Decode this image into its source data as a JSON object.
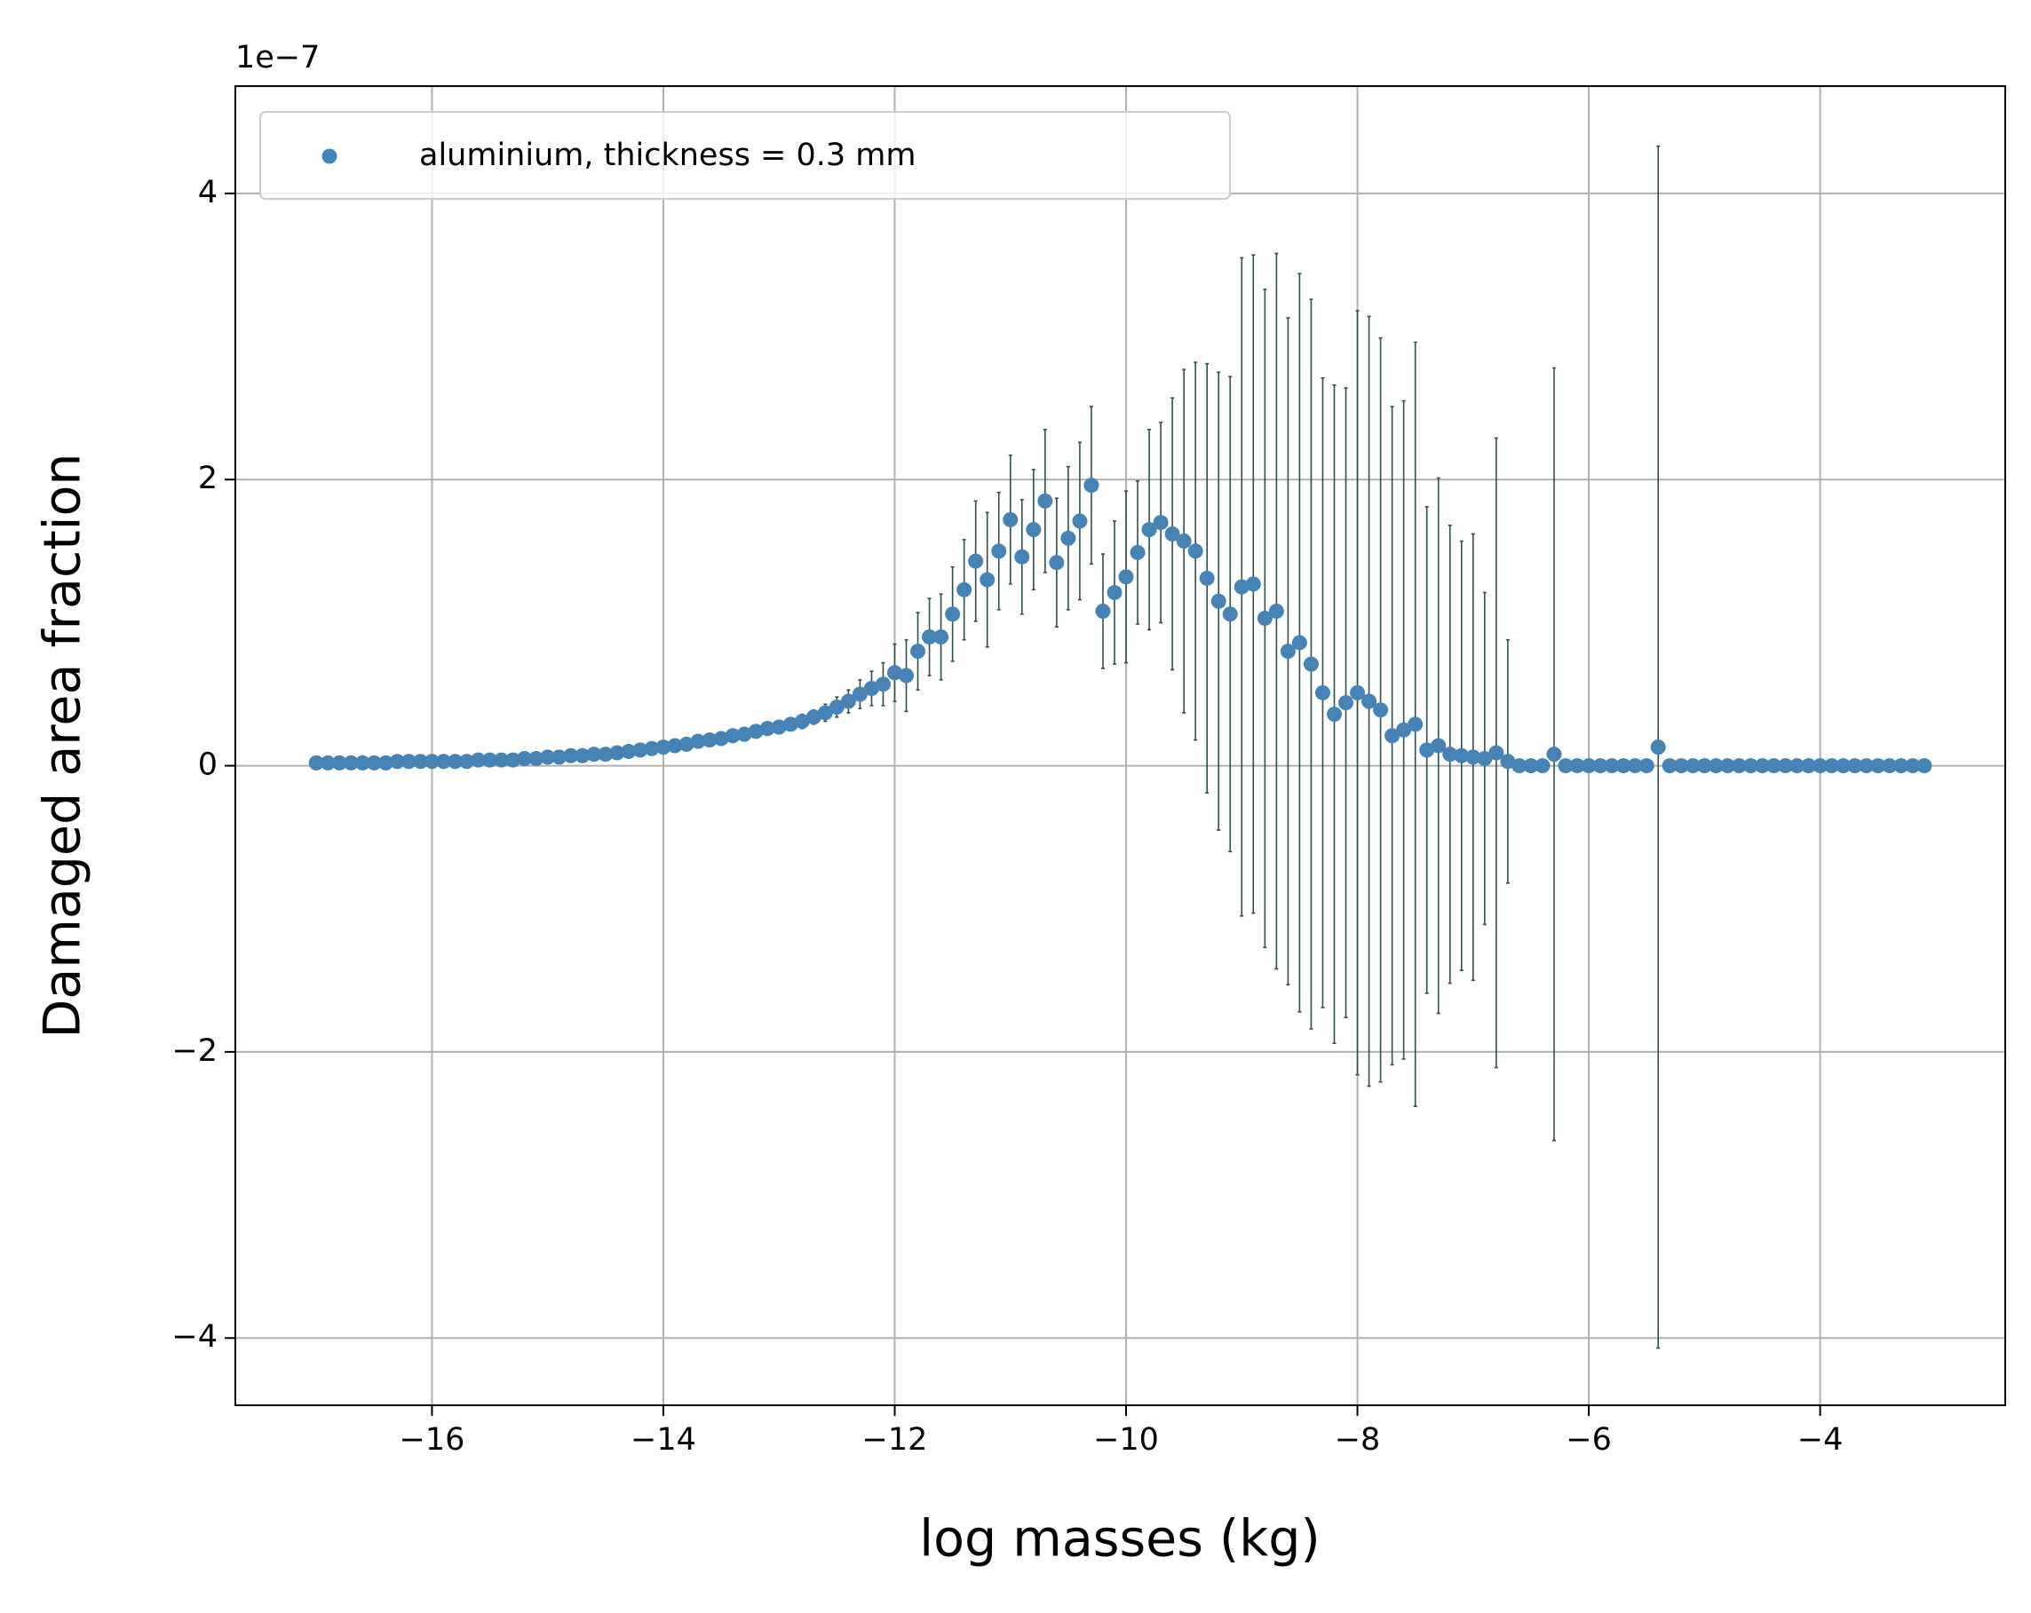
{
  "chart_data": {
    "type": "scatter",
    "y_offset_label": "1e−7",
    "xlabel": "log masses (kg)",
    "ylabel": "Damaged area fraction",
    "x": [
      -17.0,
      -16.9,
      -16.8,
      -16.7,
      -16.6,
      -16.5,
      -16.4,
      -16.3,
      -16.2,
      -16.1,
      -16.0,
      -15.9,
      -15.8,
      -15.7,
      -15.6,
      -15.5,
      -15.4,
      -15.3,
      -15.2,
      -15.1,
      -15.0,
      -14.9,
      -14.8,
      -14.7,
      -14.6,
      -14.5,
      -14.4,
      -14.3,
      -14.2,
      -14.1,
      -14.0,
      -13.9,
      -13.8,
      -13.7,
      -13.6,
      -13.5,
      -13.4,
      -13.3,
      -13.2,
      -13.1,
      -13.0,
      -12.9,
      -12.8,
      -12.7,
      -12.6,
      -12.5,
      -12.4,
      -12.3,
      -12.2,
      -12.1,
      -12.0,
      -11.9,
      -11.8,
      -11.7,
      -11.6,
      -11.5,
      -11.4,
      -11.3,
      -11.2,
      -11.1,
      -11.0,
      -10.9,
      -10.8,
      -10.7,
      -10.6,
      -10.5,
      -10.4,
      -10.3,
      -10.2,
      -10.1,
      -10.0,
      -9.9,
      -9.8,
      -9.7,
      -9.6,
      -9.5,
      -9.4,
      -9.3,
      -9.2,
      -9.1,
      -9.0,
      -8.9,
      -8.8,
      -8.7,
      -8.6,
      -8.5,
      -8.4,
      -8.3,
      -8.2,
      -8.1,
      -8.0,
      -7.9,
      -7.8,
      -7.7,
      -7.6,
      -7.5,
      -7.4,
      -7.3,
      -7.2,
      -7.1,
      -7.0,
      -6.9,
      -6.8,
      -6.7,
      -6.6,
      -6.5,
      -6.4,
      -6.3,
      -6.2,
      -6.1,
      -6.0,
      -5.9,
      -5.8,
      -5.7,
      -5.6,
      -5.5,
      -5.4,
      -5.3,
      -5.2,
      -5.1,
      -5.0,
      -4.9,
      -4.8,
      -4.7,
      -4.6,
      -4.5,
      -4.4,
      -4.3,
      -4.2,
      -4.1,
      -4.0,
      -3.9,
      -3.8,
      -3.7,
      -3.6,
      -3.5,
      -3.4,
      -3.3,
      -3.2,
      -3.1
    ],
    "series": [
      {
        "name": "aluminium, thickness = 0.3 mm",
        "color": "#4682b4",
        "error_color": "#2f4f4f",
        "values": [
          0.02,
          0.02,
          0.02,
          0.02,
          0.02,
          0.02,
          0.02,
          0.03,
          0.03,
          0.03,
          0.03,
          0.03,
          0.03,
          0.03,
          0.04,
          0.04,
          0.04,
          0.04,
          0.05,
          0.05,
          0.06,
          0.06,
          0.07,
          0.07,
          0.08,
          0.08,
          0.09,
          0.1,
          0.11,
          0.12,
          0.13,
          0.14,
          0.15,
          0.17,
          0.18,
          0.19,
          0.21,
          0.22,
          0.24,
          0.26,
          0.27,
          0.29,
          0.31,
          0.34,
          0.37,
          0.41,
          0.45,
          0.5,
          0.54,
          0.57,
          0.65,
          0.63,
          0.8,
          0.9,
          0.9,
          1.06,
          1.23,
          1.43,
          1.3,
          1.5,
          1.72,
          1.46,
          1.65,
          1.85,
          1.42,
          1.59,
          1.71,
          1.96,
          1.08,
          1.21,
          1.32,
          1.49,
          1.65,
          1.7,
          1.62,
          1.57,
          1.5,
          1.31,
          1.15,
          1.06,
          1.25,
          1.27,
          1.03,
          1.08,
          0.8,
          0.86,
          0.71,
          0.51,
          0.36,
          0.44,
          0.51,
          0.45,
          0.39,
          0.21,
          0.25,
          0.29,
          0.11,
          0.14,
          0.08,
          0.07,
          0.06,
          0.05,
          0.09,
          0.03,
          0,
          0,
          0,
          0.08,
          0,
          0,
          0,
          0,
          0,
          0,
          0,
          0,
          0.13,
          0,
          0,
          0,
          0,
          0,
          0,
          0,
          0,
          0,
          0,
          0,
          0,
          0,
          0,
          0,
          0,
          0,
          0,
          0,
          0,
          0,
          0,
          0
        ],
        "errors": [
          0.01,
          0.01,
          0.01,
          0.01,
          0.01,
          0.01,
          0.01,
          0.01,
          0.01,
          0.01,
          0.01,
          0.01,
          0.01,
          0.01,
          0.01,
          0.01,
          0.01,
          0.01,
          0.01,
          0.01,
          0.02,
          0.02,
          0.02,
          0.02,
          0.02,
          0.02,
          0.02,
          0.02,
          0.02,
          0.02,
          0.03,
          0.03,
          0.03,
          0.03,
          0.03,
          0.03,
          0.03,
          0.03,
          0.03,
          0.03,
          0.04,
          0.04,
          0.05,
          0.05,
          0.06,
          0.07,
          0.08,
          0.1,
          0.12,
          0.15,
          0.2,
          0.25,
          0.27,
          0.27,
          0.3,
          0.33,
          0.35,
          0.42,
          0.47,
          0.41,
          0.45,
          0.4,
          0.42,
          0.5,
          0.45,
          0.5,
          0.55,
          0.55,
          0.4,
          0.5,
          0.6,
          0.5,
          0.7,
          0.7,
          0.95,
          1.2,
          1.32,
          1.5,
          1.6,
          1.66,
          2.3,
          2.3,
          2.3,
          2.5,
          2.33,
          2.58,
          2.55,
          2.2,
          2.3,
          2.2,
          2.67,
          2.69,
          2.6,
          2.3,
          2.3,
          2.67,
          1.7,
          1.87,
          1.6,
          1.5,
          1.56,
          1.16,
          2.2,
          0.85,
          0,
          0,
          0,
          2.7,
          0,
          0,
          0,
          0,
          0,
          0,
          0,
          0,
          4.2,
          0,
          0,
          0,
          0,
          0,
          0,
          0,
          0,
          0,
          0,
          0,
          0,
          0,
          0,
          0,
          0,
          0,
          0,
          0,
          0,
          0,
          0,
          0
        ]
      }
    ],
    "xlim": [
      -17.7,
      -2.4
    ],
    "ylim": [
      -4.47,
      4.75
    ],
    "xticks": [
      {
        "value": -16,
        "label": "−16"
      },
      {
        "value": -14,
        "label": "−14"
      },
      {
        "value": -12,
        "label": "−12"
      },
      {
        "value": -10,
        "label": "−10"
      },
      {
        "value": -8,
        "label": "−8"
      },
      {
        "value": -6,
        "label": "−6"
      },
      {
        "value": -4,
        "label": "−4"
      }
    ],
    "yticks": [
      {
        "value": -4,
        "label": "−4"
      },
      {
        "value": -2,
        "label": "−2"
      },
      0,
      2,
      4
    ],
    "grid": true,
    "legend": "upper left"
  }
}
